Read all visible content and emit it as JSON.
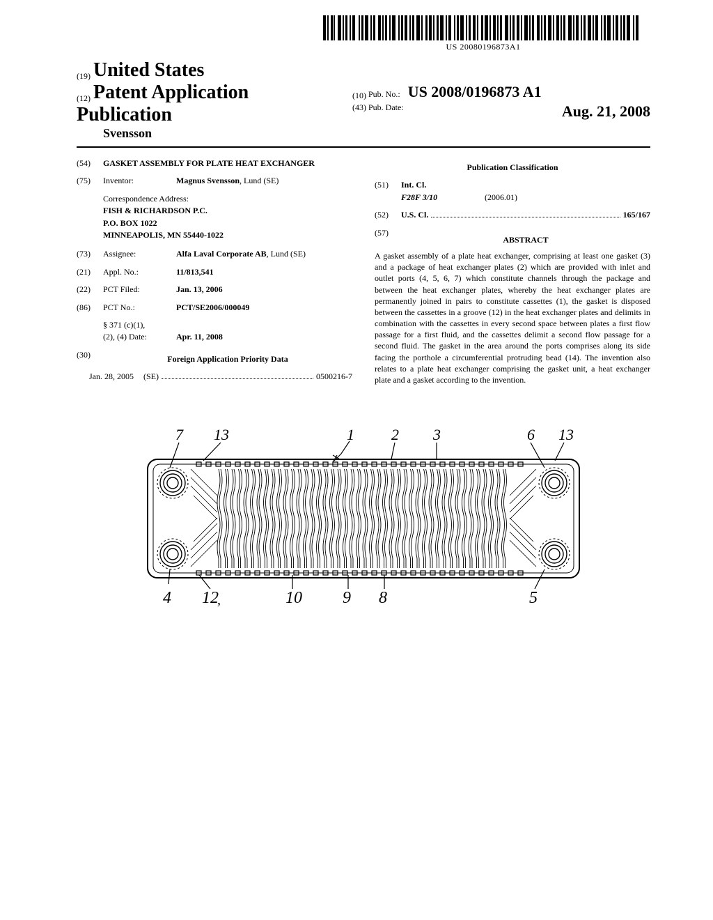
{
  "barcode_text": "US 20080196873A1",
  "header": {
    "code19": "(19)",
    "country": "United States",
    "code12": "(12)",
    "pub_type": "Patent Application Publication",
    "inventor_header": "Svensson",
    "code10": "(10)",
    "pub_no_label": "Pub. No.:",
    "pub_no": "US 2008/0196873 A1",
    "code43": "(43)",
    "pub_date_label": "Pub. Date:",
    "pub_date": "Aug. 21, 2008"
  },
  "left": {
    "code54": "(54)",
    "title": "GASKET ASSEMBLY FOR PLATE HEAT EXCHANGER",
    "code75": "(75)",
    "inventor_label": "Inventor:",
    "inventor": "Magnus Svensson",
    "inventor_loc": ", Lund (SE)",
    "corr_label": "Correspondence Address:",
    "corr_l1": "FISH & RICHARDSON P.C.",
    "corr_l2": "P.O. BOX 1022",
    "corr_l3": "MINNEAPOLIS, MN 55440-1022",
    "code73": "(73)",
    "assignee_label": "Assignee:",
    "assignee": "Alfa Laval Corporate AB",
    "assignee_loc": ", Lund (SE)",
    "code21": "(21)",
    "appl_label": "Appl. No.:",
    "appl_no": "11/813,541",
    "code22": "(22)",
    "pct_filed_label": "PCT Filed:",
    "pct_filed": "Jan. 13, 2006",
    "code86": "(86)",
    "pct_no_label": "PCT No.:",
    "pct_no": "PCT/SE2006/000049",
    "sec371_l1": "§ 371 (c)(1),",
    "sec371_l2": "(2), (4) Date:",
    "sec371_date": "Apr. 11, 2008",
    "code30": "(30)",
    "foreign_heading": "Foreign Application Priority Data",
    "foreign_date": "Jan. 28, 2005",
    "foreign_country": "(SE)",
    "foreign_no": "0500216-7"
  },
  "right": {
    "class_heading": "Publication Classification",
    "code51": "(51)",
    "intcl_label": "Int. Cl.",
    "intcl_code": "F28F 3/10",
    "intcl_date": "(2006.01)",
    "code52": "(52)",
    "uscl_label": "U.S. Cl.",
    "uscl_value": "165/167",
    "code57": "(57)",
    "abstract_heading": "ABSTRACT",
    "abstract": "A gasket assembly of a plate heat exchanger, comprising at least one gasket (3) and a package of heat exchanger plates (2) which are provided with inlet and outlet ports (4, 5, 6, 7) which constitute channels through the package and between the heat exchanger plates, whereby the heat exchanger plates are permanently joined in pairs to constitute cassettes (1), the gasket is disposed between the cassettes in a groove (12) in the heat exchanger plates and delimits in combination with the cassettes in every second space between plates a first flow passage for a first fluid, and the cassettes delimit a second flow passage for a second fluid. The gasket in the area around the ports comprises along its side facing the porthole a circumferential protruding bead (14). The invention also relates to a plate heat exchanger comprising the gasket unit, a heat exchanger plate and a gasket according to the invention."
  },
  "figure": {
    "labels_top": [
      "7",
      "13",
      "1",
      "2",
      "3",
      "6",
      "13"
    ],
    "labels_bottom": [
      "4",
      "12",
      "10",
      "9",
      "8",
      "5"
    ]
  }
}
